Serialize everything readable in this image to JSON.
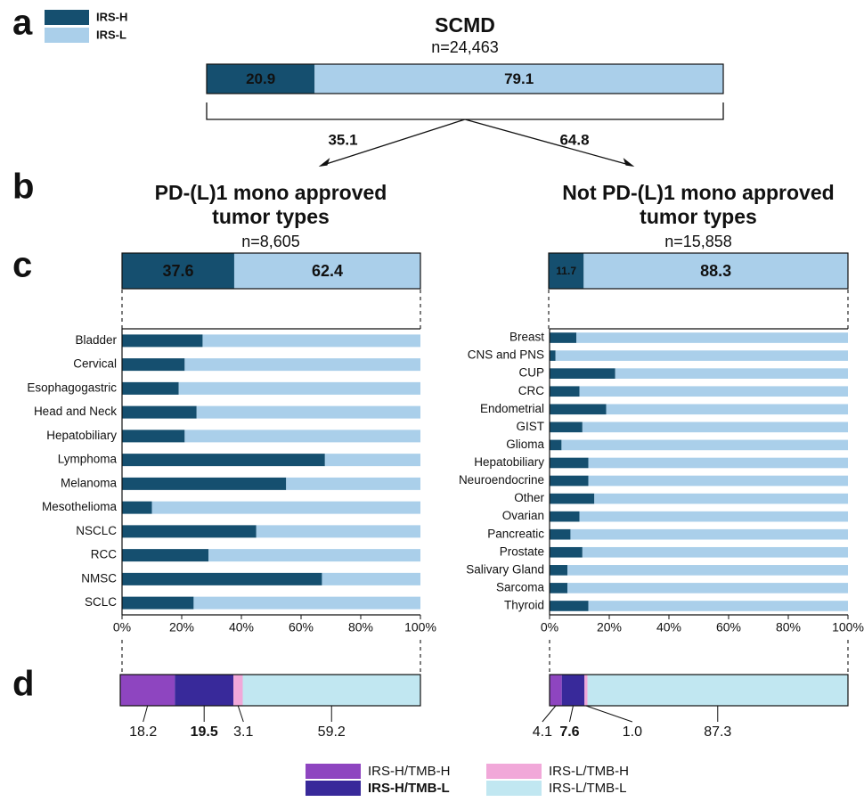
{
  "panel_labels": [
    "a",
    "b",
    "c",
    "d"
  ],
  "chart_data": [
    {
      "type": "stacked_bar",
      "title": "SCMD",
      "subtitle": "n=24,463",
      "xlim": [
        0,
        100
      ],
      "series": [
        {
          "name": "IRS-H",
          "color": "#154f6f",
          "values": [
            20.9
          ]
        },
        {
          "name": "IRS-L",
          "color": "#aacfea",
          "values": [
            79.1
          ]
        }
      ]
    },
    {
      "type": "split",
      "values": [
        35.1,
        64.8
      ]
    },
    {
      "type": "stacked_bar",
      "title": [
        "PD-(L)1 mono approved",
        "tumor types"
      ],
      "subtitle": "n=8,605",
      "xlim": [
        0,
        100
      ],
      "values": [
        37.6,
        62.4
      ],
      "colors": [
        "#154f6f",
        "#aacfea"
      ]
    },
    {
      "type": "stacked_bar",
      "title": [
        "Not PD-(L)1 mono approved",
        "tumor types"
      ],
      "subtitle": "n=15,858",
      "xlim": [
        0,
        100
      ],
      "values": [
        11.7,
        88.3
      ],
      "colors": [
        "#154f6f",
        "#aacfea"
      ]
    },
    {
      "type": "hbar_stacked",
      "xlim": [
        0,
        100
      ],
      "xticks": [
        {
          "value": 0,
          "label": "0%"
        },
        {
          "value": 20,
          "label": "20%"
        },
        {
          "value": 40,
          "label": "40%"
        },
        {
          "value": 60,
          "label": "60%"
        },
        {
          "value": 80,
          "label": "80%"
        },
        {
          "value": 100,
          "label": "100%"
        }
      ],
      "categories": [
        "Bladder",
        "Cervical",
        "Esophagogastric",
        "Head and Neck",
        "Hepatobiliary",
        "Lymphoma",
        "Melanoma",
        "Mesothelioma",
        "NSCLC",
        "RCC",
        "NMSC",
        "SCLC"
      ],
      "series": [
        {
          "color": "#154f6f",
          "values": [
            27,
            21,
            19,
            25,
            21,
            68,
            55,
            10,
            45,
            29,
            67,
            24
          ]
        },
        {
          "color": "#aacfea",
          "values": [
            73,
            79,
            81,
            75,
            79,
            32,
            45,
            90,
            55,
            71,
            33,
            76
          ]
        }
      ]
    },
    {
      "type": "hbar_stacked",
      "xlim": [
        0,
        100
      ],
      "xticks": [
        {
          "value": 0,
          "label": "0%"
        },
        {
          "value": 20,
          "label": "20%"
        },
        {
          "value": 40,
          "label": "40%"
        },
        {
          "value": 60,
          "label": "60%"
        },
        {
          "value": 80,
          "label": "80%"
        },
        {
          "value": 100,
          "label": "100%"
        }
      ],
      "categories": [
        "Breast",
        "CNS and PNS",
        "CUP",
        "CRC",
        "Endometrial",
        "GIST",
        "Glioma",
        "Hepatobiliary",
        "Neuroendocrine",
        "Other",
        "Ovarian",
        "Pancreatic",
        "Prostate",
        "Salivary Gland",
        "Sarcoma",
        "Thyroid"
      ],
      "series": [
        {
          "color": "#154f6f",
          "values": [
            9,
            2,
            22,
            10,
            19,
            11,
            4,
            13,
            13,
            15,
            10,
            7,
            11,
            6,
            6,
            13
          ]
        },
        {
          "color": "#aacfea",
          "values": [
            91,
            98,
            78,
            90,
            81,
            89,
            96,
            87,
            87,
            85,
            90,
            93,
            89,
            94,
            94,
            87
          ]
        }
      ]
    },
    {
      "type": "stacked_bar_labeled",
      "xlim": [
        0,
        100
      ],
      "series": [
        {
          "name": "IRS-H/TMB-H",
          "color": "#8e45c0",
          "values": [
            18.2
          ]
        },
        {
          "name": "IRS-H/TMB-L",
          "color": "#38299a",
          "values": [
            19.5
          ]
        },
        {
          "name": "IRS-L/TMB-H",
          "color": "#f1a8d9",
          "values": [
            3.1
          ]
        },
        {
          "name": "IRS-L/TMB-L",
          "color": "#c1e7f1",
          "values": [
            59.2
          ]
        }
      ]
    },
    {
      "type": "stacked_bar_labeled",
      "xlim": [
        0,
        100
      ],
      "values": [
        4.1,
        7.6,
        1.0,
        87.3
      ],
      "value_labels": [
        "4.1",
        "7.6",
        "1.0",
        "87.3"
      ],
      "colors": [
        "#8e45c0",
        "#38299a",
        "#f1a8d9",
        "#c1e7f1"
      ]
    }
  ]
}
